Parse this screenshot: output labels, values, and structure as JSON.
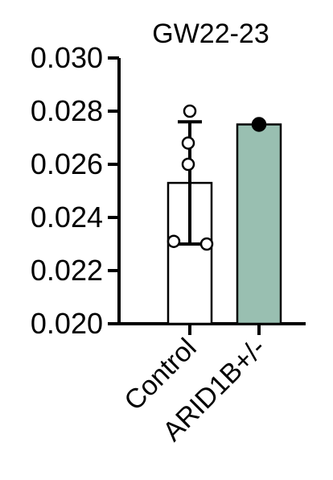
{
  "chart_data": {
    "type": "bar",
    "title": "GW22-23",
    "xlabel": "",
    "ylabel": "",
    "ylim": [
      0.02,
      0.03
    ],
    "yticks": [
      "0.020",
      "0.022",
      "0.024",
      "0.026",
      "0.028",
      "0.030"
    ],
    "grid": false,
    "legend": "none",
    "categories": [
      "Control",
      "ARID1B+/-"
    ],
    "values": [
      0.0253,
      0.0275
    ],
    "error": [
      0.0023,
      0
    ],
    "points": [
      [
        0.028,
        0.0268,
        0.026,
        0.0231,
        0.023
      ],
      [
        0.0275
      ]
    ],
    "bar_colors": [
      "#ffffff",
      "#99bfb1"
    ],
    "point_fill": [
      "#ffffff",
      "#000000"
    ],
    "stroke_color": "#000000"
  }
}
